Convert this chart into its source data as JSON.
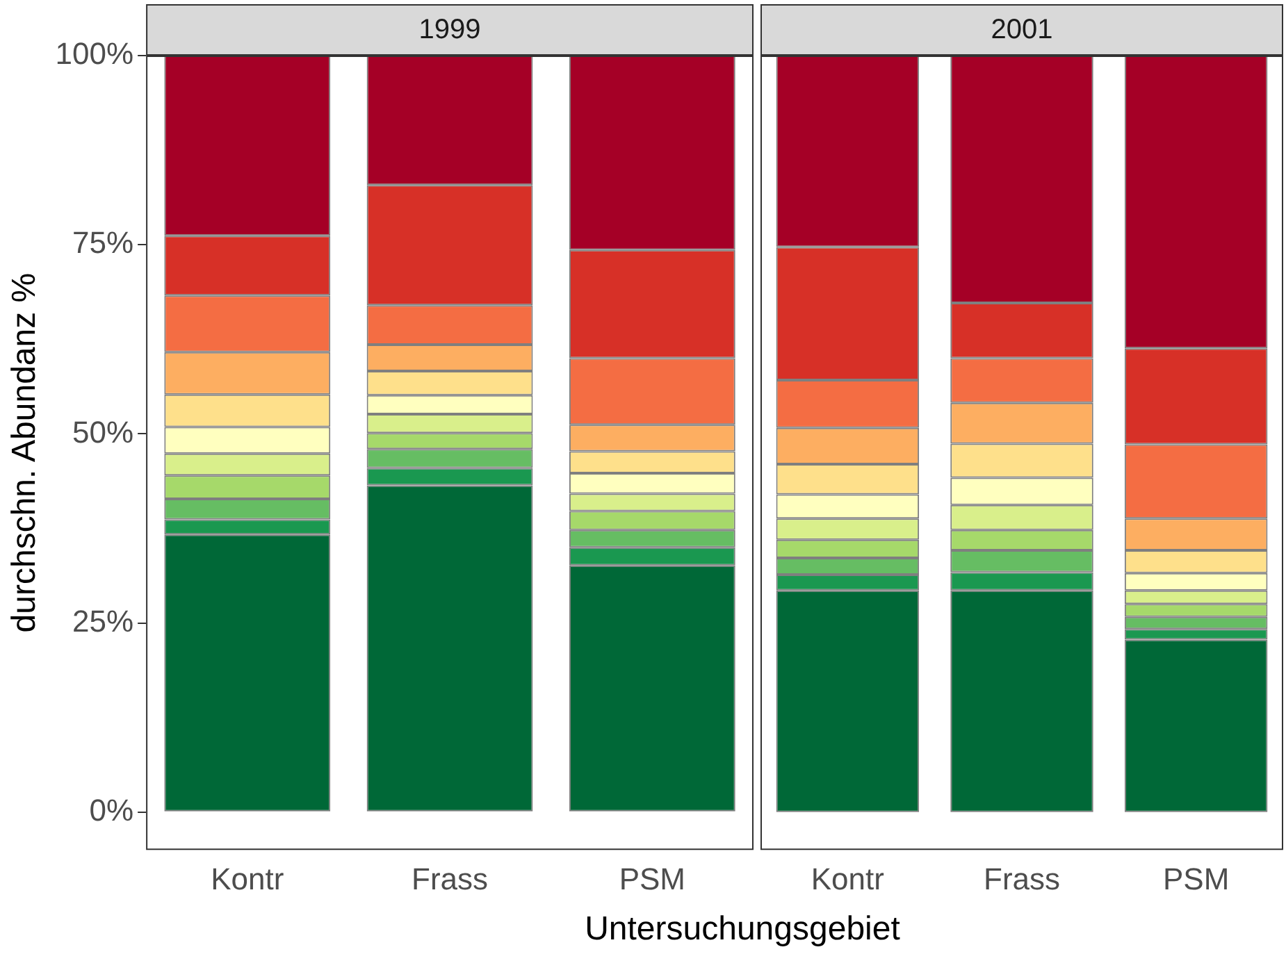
{
  "chart_data": [
    {
      "type": "bar",
      "title": "1999",
      "ylabel": "durchschn. Abundanz %",
      "xlabel": "Untersuchungsgebiet",
      "categories": [
        "Kontr",
        "Frass",
        "PSM"
      ],
      "stacked": true,
      "grid": false,
      "legend": false,
      "ylim": [
        -5,
        100
      ],
      "yticks": [
        {
          "value": 0,
          "label": "0%"
        },
        {
          "value": 25,
          "label": "25%"
        },
        {
          "value": 50,
          "label": "50%"
        },
        {
          "value": 75,
          "label": "75%"
        },
        {
          "value": 100,
          "label": "100%"
        }
      ],
      "series": [
        {
          "color": "#006837",
          "values": [
            36.7,
            43.2,
            32.6
          ]
        },
        {
          "color": "#1a9850",
          "values": [
            2.0,
            2.3,
            2.4
          ]
        },
        {
          "color": "#66bd63",
          "values": [
            2.7,
            2.5,
            2.3
          ]
        },
        {
          "color": "#a6d96a",
          "values": [
            3.1,
            2.1,
            2.5
          ]
        },
        {
          "color": "#d9ef8b",
          "values": [
            2.9,
            2.5,
            2.3
          ]
        },
        {
          "color": "#ffffbf",
          "values": [
            3.5,
            2.5,
            2.7
          ]
        },
        {
          "color": "#fee08b",
          "values": [
            4.3,
            3.2,
            2.9
          ]
        },
        {
          "color": "#fdae61",
          "values": [
            5.6,
            3.5,
            3.5
          ]
        },
        {
          "color": "#f46d43",
          "values": [
            7.5,
            5.2,
            8.8
          ]
        },
        {
          "color": "#d73027",
          "values": [
            7.9,
            15.9,
            14.3
          ]
        },
        {
          "color": "#a50026",
          "values": [
            23.8,
            17.1,
            25.7
          ]
        }
      ]
    },
    {
      "type": "bar",
      "title": "2001",
      "categories": [
        "Kontr",
        "Frass",
        "PSM"
      ],
      "stacked": true,
      "grid": false,
      "legend": false,
      "tick_labels": "x",
      "ylim": [
        -5,
        100
      ],
      "series": [
        {
          "color": "#006837",
          "values": [
            29.3,
            29.3,
            22.8
          ]
        },
        {
          "color": "#1a9850",
          "values": [
            2.1,
            2.4,
            1.4
          ]
        },
        {
          "color": "#66bd63",
          "values": [
            2.2,
            2.9,
            1.6
          ]
        },
        {
          "color": "#a6d96a",
          "values": [
            2.4,
            2.7,
            1.7
          ]
        },
        {
          "color": "#d9ef8b",
          "values": [
            2.8,
            3.3,
            1.8
          ]
        },
        {
          "color": "#ffffbf",
          "values": [
            3.2,
            3.6,
            2.3
          ]
        },
        {
          "color": "#fee08b",
          "values": [
            4.0,
            4.5,
            3.0
          ]
        },
        {
          "color": "#fdae61",
          "values": [
            4.8,
            5.4,
            4.2
          ]
        },
        {
          "color": "#f46d43",
          "values": [
            6.3,
            5.9,
            9.8
          ]
        },
        {
          "color": "#d73027",
          "values": [
            17.6,
            7.3,
            12.7
          ]
        },
        {
          "color": "#a50026",
          "values": [
            25.3,
            32.7,
            38.7
          ]
        }
      ]
    }
  ]
}
